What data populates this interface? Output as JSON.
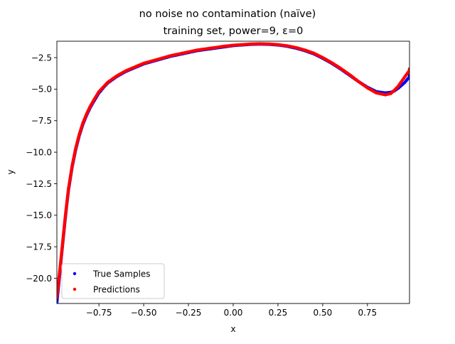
{
  "figure": {
    "suptitle": "no noise no contamination (naïve)",
    "title": "training set, power=9, ε=0"
  },
  "colors": {
    "true_samples": "#0000ff",
    "predictions": "#ff0000",
    "axes": "#000000",
    "background": "#ffffff"
  },
  "chart_data": {
    "type": "scatter",
    "title": "training set, power=9, ε=0",
    "xlabel": "x",
    "ylabel": "y",
    "xlim": [
      -0.985,
      0.985
    ],
    "ylim": [
      -22.0,
      -1.2
    ],
    "grid": false,
    "legend_position": "lower-left",
    "xticks": [
      -0.75,
      -0.5,
      -0.25,
      0.0,
      0.25,
      0.5,
      0.75
    ],
    "xtick_labels": [
      "−0.75",
      "−0.50",
      "−0.25",
      "0.00",
      "0.25",
      "0.50",
      "0.75"
    ],
    "yticks": [
      -2.5,
      -5.0,
      -7.5,
      -10.0,
      -12.5,
      -15.0,
      -17.5,
      -20.0
    ],
    "ytick_labels": [
      "−2.5",
      "−5.0",
      "−7.5",
      "−10.0",
      "−12.5",
      "−15.0",
      "−17.5",
      "−20.0"
    ],
    "series": [
      {
        "name": "True Samples",
        "color": "#0000ff",
        "x": [
          -0.985,
          -0.97,
          -0.96,
          -0.95,
          -0.94,
          -0.93,
          -0.92,
          -0.9,
          -0.88,
          -0.86,
          -0.84,
          -0.82,
          -0.8,
          -0.78,
          -0.75,
          -0.72,
          -0.7,
          -0.65,
          -0.6,
          -0.55,
          -0.5,
          -0.45,
          -0.4,
          -0.35,
          -0.3,
          -0.25,
          -0.2,
          -0.15,
          -0.1,
          -0.05,
          0.0,
          0.05,
          0.1,
          0.15,
          0.2,
          0.25,
          0.3,
          0.35,
          0.4,
          0.45,
          0.5,
          0.55,
          0.6,
          0.65,
          0.7,
          0.75,
          0.8,
          0.85,
          0.88,
          0.9,
          0.92,
          0.94,
          0.96,
          0.98,
          0.985
        ],
        "y": [
          -21.9,
          -19.8,
          -18.3,
          -16.9,
          -15.5,
          -14.2,
          -13.0,
          -11.2,
          -9.8,
          -8.7,
          -7.8,
          -7.1,
          -6.5,
          -6.0,
          -5.3,
          -4.8,
          -4.5,
          -4.0,
          -3.6,
          -3.3,
          -3.0,
          -2.8,
          -2.6,
          -2.4,
          -2.25,
          -2.1,
          -1.95,
          -1.85,
          -1.75,
          -1.65,
          -1.55,
          -1.5,
          -1.45,
          -1.43,
          -1.45,
          -1.5,
          -1.6,
          -1.75,
          -1.95,
          -2.2,
          -2.55,
          -2.95,
          -3.4,
          -3.9,
          -4.4,
          -4.85,
          -5.2,
          -5.3,
          -5.25,
          -5.15,
          -4.95,
          -4.7,
          -4.45,
          -4.1,
          -3.9
        ]
      },
      {
        "name": "Predictions",
        "color": "#ff0000",
        "x": [
          -0.985,
          -0.97,
          -0.96,
          -0.95,
          -0.94,
          -0.93,
          -0.92,
          -0.9,
          -0.88,
          -0.86,
          -0.84,
          -0.82,
          -0.8,
          -0.78,
          -0.75,
          -0.72,
          -0.7,
          -0.65,
          -0.6,
          -0.55,
          -0.5,
          -0.45,
          -0.4,
          -0.35,
          -0.3,
          -0.25,
          -0.2,
          -0.15,
          -0.1,
          -0.05,
          0.0,
          0.05,
          0.1,
          0.15,
          0.2,
          0.25,
          0.3,
          0.35,
          0.4,
          0.45,
          0.5,
          0.55,
          0.6,
          0.65,
          0.7,
          0.75,
          0.8,
          0.85,
          0.88,
          0.9,
          0.92,
          0.94,
          0.96,
          0.98,
          0.985
        ],
        "y": [
          -21.5,
          -19.6,
          -18.2,
          -16.8,
          -15.4,
          -14.1,
          -12.9,
          -11.1,
          -9.7,
          -8.6,
          -7.7,
          -7.0,
          -6.4,
          -5.9,
          -5.2,
          -4.75,
          -4.45,
          -3.95,
          -3.55,
          -3.25,
          -2.95,
          -2.75,
          -2.55,
          -2.35,
          -2.2,
          -2.05,
          -1.9,
          -1.8,
          -1.7,
          -1.6,
          -1.52,
          -1.47,
          -1.42,
          -1.4,
          -1.42,
          -1.47,
          -1.56,
          -1.7,
          -1.9,
          -2.15,
          -2.5,
          -2.9,
          -3.35,
          -3.85,
          -4.4,
          -4.9,
          -5.3,
          -5.45,
          -5.35,
          -5.1,
          -4.8,
          -4.4,
          -4.0,
          -3.6,
          -3.4
        ]
      }
    ]
  }
}
